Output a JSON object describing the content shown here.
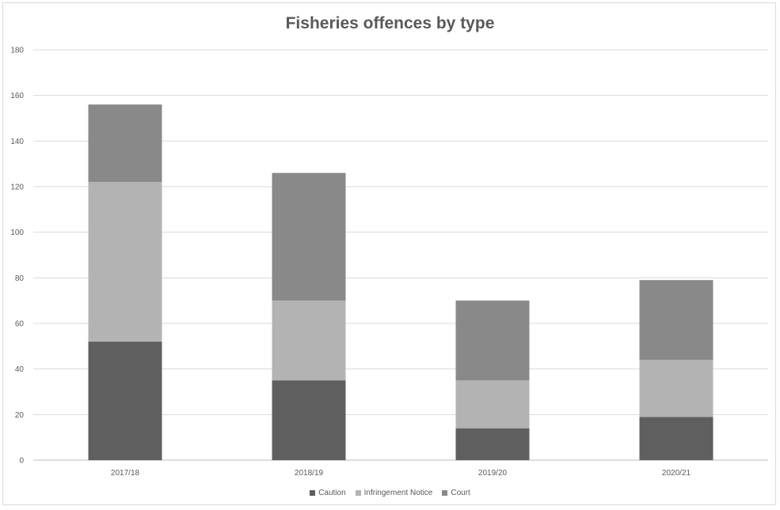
{
  "chart_data": {
    "type": "bar",
    "stacked": true,
    "title": "Fisheries offences by type",
    "xlabel": "",
    "ylabel": "",
    "categories": [
      "2017/18",
      "2018/19",
      "2019/20",
      "2020/21"
    ],
    "ylim": [
      0,
      180
    ],
    "yticks": [
      0,
      20,
      40,
      60,
      80,
      100,
      120,
      140,
      160,
      180
    ],
    "grid": true,
    "legend_position": "bottom",
    "series": [
      {
        "name": "Caution",
        "color": "#5f5f5f",
        "values": [
          52,
          35,
          14,
          19
        ]
      },
      {
        "name": "Infringement Notice",
        "color": "#b3b3b3",
        "values": [
          70,
          35,
          21,
          25
        ]
      },
      {
        "name": "Court",
        "color": "#898989",
        "values": [
          34,
          56,
          35,
          35
        ]
      }
    ]
  }
}
